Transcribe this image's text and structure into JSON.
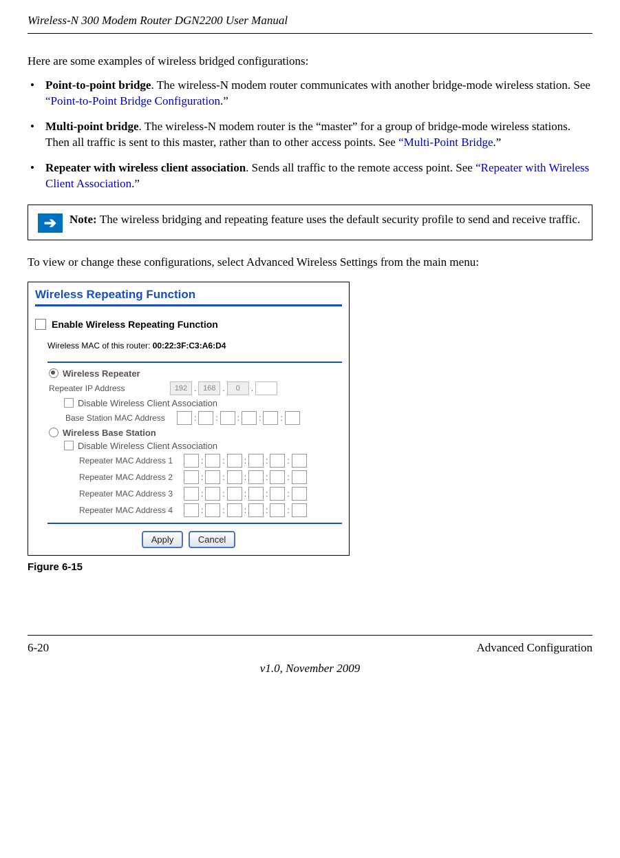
{
  "header": {
    "title": "Wireless-N 300 Modem Router DGN2200 User Manual"
  },
  "intro": "Here are some examples of wireless bridged configurations:",
  "bullets": [
    {
      "title": "Point-to-point bridge",
      "text1": ". The wireless-N modem router communicates with another bridge-mode wireless station. See ",
      "link": "“Point-to-Point Bridge Configuration",
      "tail": ".”"
    },
    {
      "title": "Multi-point bridge",
      "text1": ". The wireless-N modem router is the “master” for a group of bridge-mode wireless stations. Then all traffic is sent to this master, rather than to other access points. See ",
      "link": "“Multi-Point Bridge",
      "tail": ".”"
    },
    {
      "title": "Repeater with wireless client association",
      "text1": ". Sends all traffic to the remote access point. See ",
      "link": "“Repeater with Wireless Client Association",
      "tail": ".”"
    }
  ],
  "note": {
    "prefix": "Note: ",
    "text": "The wireless bridging and repeating feature uses the default security profile to send and receive traffic."
  },
  "viewText": "To view or change these configurations, select Advanced Wireless Settings from the main menu:",
  "screenshot": {
    "title": "Wireless Repeating Function",
    "enableLabel": "Enable Wireless Repeating Function",
    "macLabel": "Wireless MAC of this router: ",
    "macValue": "00:22:3F:C3:A6:D4",
    "repeaterLabel": "Wireless Repeater",
    "repeaterIpLabel": "Repeater IP Address",
    "ipValues": [
      "192",
      "168",
      "0",
      ""
    ],
    "disableLabel": "Disable Wireless Client Association",
    "baseStationMacLabel": "Base Station MAC Address",
    "baseStationLabel": "Wireless Base Station",
    "repeaterMacLabels": [
      "Repeater MAC Address 1",
      "Repeater MAC Address 2",
      "Repeater MAC Address 3",
      "Repeater MAC Address 4"
    ],
    "applyBtn": "Apply",
    "cancelBtn": "Cancel"
  },
  "figureCaption": "Figure 6-15",
  "footer": {
    "pageNum": "6-20",
    "section": "Advanced Configuration",
    "version": "v1.0, November 2009"
  }
}
